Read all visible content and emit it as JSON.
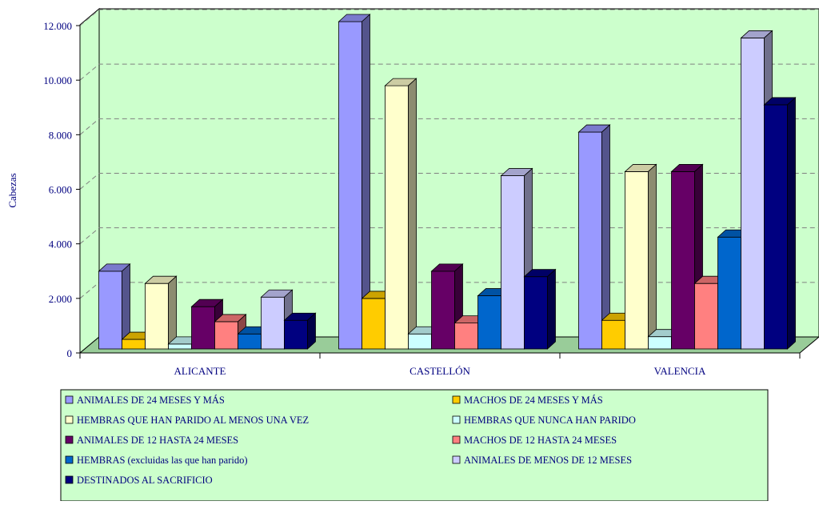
{
  "chart_data": {
    "type": "bar",
    "title": "",
    "ylabel": "Cabezas",
    "xlabel": "",
    "ylim": [
      0,
      12000
    ],
    "yticks": [
      "0",
      "2.000",
      "4.000",
      "6.000",
      "8.000",
      "10.000",
      "12.000"
    ],
    "ytick_values": [
      0,
      2000,
      4000,
      6000,
      8000,
      10000,
      12000
    ],
    "categories": [
      "ALICANTE",
      "CASTELLÓN",
      "VALENCIA"
    ],
    "grid": true,
    "legend_position": "bottom",
    "three_d": true,
    "series": [
      {
        "name": "ANIMALES DE 24 MESES Y MÁS",
        "color": "#9999FF",
        "values": [
          2850,
          12000,
          7950
        ]
      },
      {
        "name": "MACHOS DE 24 MESES Y MÁS",
        "color": "#FFCC00",
        "values": [
          350,
          1850,
          1050
        ]
      },
      {
        "name": "HEMBRAS QUE HAN PARIDO AL MENOS UNA VEZ",
        "color": "#FFFFCC",
        "values": [
          2400,
          9650,
          6500
        ]
      },
      {
        "name": "HEMBRAS QUE NUNCA HAN PARIDO",
        "color": "#CCFFFF",
        "values": [
          180,
          550,
          450
        ]
      },
      {
        "name": "ANIMALES DE 12 HASTA 24 MESES",
        "color": "#660066",
        "values": [
          1550,
          2850,
          6500
        ]
      },
      {
        "name": "MACHOS DE 12 HASTA 24 MESES",
        "color": "#FF8080",
        "values": [
          1000,
          950,
          2400
        ]
      },
      {
        "name": "HEMBRAS (excluidas las que han parido)",
        "color": "#0066CC",
        "values": [
          550,
          1950,
          4100
        ]
      },
      {
        "name": "ANIMALES DE MENOS DE 12 MESES",
        "color": "#CCCCFF",
        "values": [
          1900,
          6350,
          11400
        ]
      },
      {
        "name": "DESTINADOS AL SACRIFICIO",
        "color": "#000080",
        "values": [
          1050,
          2650,
          8950
        ]
      }
    ],
    "colors": {
      "plot_background": "#CCFFCC",
      "floor": "#99CC99",
      "text": "#000080",
      "gridline": "#808080"
    }
  }
}
